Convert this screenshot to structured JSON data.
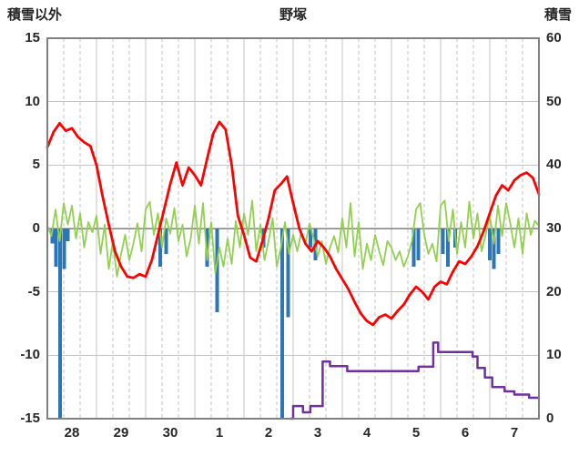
{
  "chart_data": {
    "type": "line",
    "title": "野塚",
    "left_axis": {
      "title": "積雪以外",
      "min": -15,
      "max": 15,
      "ticks": [
        15,
        10,
        5,
        0,
        -5,
        -10,
        -15
      ]
    },
    "right_axis": {
      "title": "積雪",
      "min": 0,
      "max": 60,
      "ticks": [
        60,
        50,
        40,
        30,
        20,
        10,
        0
      ]
    },
    "x_axis": {
      "labels": [
        "28",
        "29",
        "30",
        "1",
        "2",
        "3",
        "4",
        "5",
        "6",
        "7"
      ],
      "min": 0,
      "max": 10
    },
    "grid": {
      "major_color": "#c3c3c3",
      "minor_color": "#c3c3c3",
      "zero_line_color": "#808080",
      "frame_color": "#808080"
    },
    "series": [
      {
        "name": "temperature",
        "color": "#ff0000",
        "line_width": 2.8,
        "axis": "left",
        "dt": 0.125,
        "values": [
          6.4,
          7.6,
          8.3,
          7.7,
          7.9,
          7.2,
          6.8,
          6.5,
          5.0,
          2.5,
          0.3,
          -1.8,
          -3.0,
          -3.8,
          -3.9,
          -3.6,
          -3.8,
          -2.5,
          -0.5,
          1.5,
          3.5,
          5.2,
          3.4,
          4.8,
          4.2,
          3.4,
          5.5,
          7.5,
          8.4,
          7.8,
          5.0,
          1.0,
          -0.5,
          -2.3,
          -2.6,
          -1.0,
          0.8,
          3.0,
          3.5,
          4.1,
          2.0,
          0.0,
          -1.2,
          -1.8,
          -1.0,
          -1.5,
          -2.2,
          -3.2,
          -4.0,
          -4.8,
          -5.8,
          -6.7,
          -7.3,
          -7.6,
          -7.0,
          -6.8,
          -7.1,
          -6.5,
          -6.0,
          -5.2,
          -4.6,
          -5.0,
          -5.6,
          -4.6,
          -4.2,
          -4.4,
          -3.4,
          -2.6,
          -2.8,
          -2.2,
          -1.4,
          -0.2,
          1.2,
          2.6,
          3.4,
          3.0,
          3.8,
          4.2,
          4.4,
          4.0,
          2.7
        ]
      },
      {
        "name": "wind-oscillation",
        "color": "#92d050",
        "line_width": 1.8,
        "axis": "left",
        "dt": 0.0833333,
        "values": [
          0.2,
          -0.6,
          1.5,
          -1.0,
          2.0,
          0.3,
          1.8,
          -0.8,
          1.2,
          -1.5,
          0.5,
          -0.3,
          1.0,
          -2.0,
          0.3,
          -3.2,
          -1.0,
          -3.8,
          -2.0,
          -0.5,
          -2.5,
          -1.2,
          0.4,
          -1.8,
          1.5,
          2.1,
          -0.5,
          1.2,
          -1.5,
          0.8,
          -0.4,
          1.6,
          -1.0,
          0.3,
          -2.2,
          -0.8,
          1.8,
          -1.2,
          2.0,
          -2.5,
          0.5,
          -3.5,
          -1.5,
          -3.0,
          -0.8,
          -2.8,
          0.6,
          -1.5,
          1.2,
          -0.5,
          2.2,
          -1.8,
          0.3,
          -2.5,
          -1.0,
          0.8,
          -3.0,
          -1.5,
          0.5,
          -2.0,
          -0.5,
          -1.8,
          -0.3,
          -1.2,
          0.4,
          -0.8,
          -2.2,
          -1.0,
          -2.8,
          -1.5,
          -0.6,
          -1.9,
          0.8,
          -1.5,
          2.0,
          -2.2,
          0.5,
          -3.2,
          -1.2,
          -2.5,
          -0.5,
          -1.8,
          -2.9,
          -1.0,
          -1.5,
          -2.5,
          -1.8,
          -3.0,
          -2.2,
          -1.0,
          1.5,
          2.0,
          -0.5,
          -2.0,
          -1.2,
          -2.6,
          1.8,
          2.2,
          -1.0,
          1.5,
          -2.0,
          0.5,
          -1.5,
          2.1,
          -0.8,
          1.2,
          -1.8,
          -0.5,
          1.0,
          -1.2,
          1.8,
          -0.6,
          2.0,
          0.4,
          -1.5,
          0.8,
          -2.0,
          1.2,
          -0.5,
          0.6,
          0.2
        ]
      },
      {
        "name": "snow-depth",
        "color": "#7030a0",
        "line_width": 2.5,
        "axis": "right",
        "points": [
          [
            4.95,
            0
          ],
          [
            5.0,
            0
          ],
          [
            5.0,
            2
          ],
          [
            5.2,
            2
          ],
          [
            5.2,
            1
          ],
          [
            5.35,
            1
          ],
          [
            5.35,
            2
          ],
          [
            5.6,
            2
          ],
          [
            5.6,
            9
          ],
          [
            5.75,
            9
          ],
          [
            5.75,
            8.3
          ],
          [
            6.1,
            8.3
          ],
          [
            6.1,
            7.5
          ],
          [
            7.55,
            7.5
          ],
          [
            7.55,
            8.2
          ],
          [
            7.85,
            8.2
          ],
          [
            7.85,
            12
          ],
          [
            7.95,
            12
          ],
          [
            7.95,
            10.5
          ],
          [
            8.65,
            10.5
          ],
          [
            8.65,
            9.8
          ],
          [
            8.75,
            9.8
          ],
          [
            8.75,
            8
          ],
          [
            8.9,
            8
          ],
          [
            8.9,
            6.5
          ],
          [
            9.05,
            6.5
          ],
          [
            9.05,
            5
          ],
          [
            9.3,
            5
          ],
          [
            9.3,
            4.3
          ],
          [
            9.5,
            4.3
          ],
          [
            9.5,
            3.8
          ],
          [
            9.8,
            3.8
          ],
          [
            9.8,
            3.3
          ],
          [
            10,
            3.3
          ]
        ]
      }
    ],
    "bars": {
      "name": "precipitation",
      "color": "#2e75b6",
      "line_width": 4,
      "axis": "left",
      "points": [
        [
          0.1,
          -1.2
        ],
        [
          0.18,
          -3.0
        ],
        [
          0.26,
          -15
        ],
        [
          0.34,
          -3.2
        ],
        [
          0.42,
          -1.0
        ],
        [
          2.3,
          -3.0
        ],
        [
          2.42,
          -2.0
        ],
        [
          3.25,
          -3.0
        ],
        [
          3.45,
          -6.6
        ],
        [
          4.4,
          -1.5
        ],
        [
          4.78,
          -15
        ],
        [
          4.9,
          -7.0
        ],
        [
          5.35,
          -1.5
        ],
        [
          5.45,
          -2.5
        ],
        [
          7.45,
          -3.0
        ],
        [
          7.55,
          -2.5
        ],
        [
          8.05,
          -2.0
        ],
        [
          8.15,
          -3.0
        ],
        [
          8.3,
          -1.5
        ],
        [
          9.0,
          -2.5
        ],
        [
          9.08,
          -3.2
        ],
        [
          9.18,
          -2.0
        ]
      ]
    }
  }
}
